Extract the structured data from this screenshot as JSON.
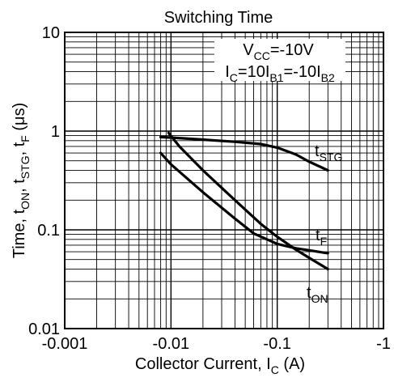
{
  "chart_data": {
    "type": "line",
    "title": "Switching Time",
    "xlabel": {
      "main": "Collector Current, I",
      "sub": "C",
      "tail": " (A)"
    },
    "ylabel": {
      "parts": [
        {
          "t": "Time, t",
          "sub": false
        },
        {
          "t": "ON",
          "sub": true
        },
        {
          "t": ", t",
          "sub": false
        },
        {
          "t": "STG",
          "sub": true
        },
        {
          "t": ", t",
          "sub": false
        },
        {
          "t": "F",
          "sub": true
        },
        {
          "t": " (μs)",
          "sub": false
        }
      ]
    },
    "x_scale": "log",
    "y_scale": "log",
    "xlim": [
      -0.001,
      -1
    ],
    "ylim": [
      0.01,
      10
    ],
    "x_ticks": [
      {
        "value": -0.001,
        "label": "-0.001"
      },
      {
        "value": -0.01,
        "label": "-0.01"
      },
      {
        "value": -0.1,
        "label": "-0.1"
      },
      {
        "value": -1,
        "label": "-1"
      }
    ],
    "y_ticks": [
      {
        "value": 0.01,
        "label": "0.01"
      },
      {
        "value": 0.1,
        "label": "0.1"
      },
      {
        "value": 1,
        "label": "1"
      },
      {
        "value": 10,
        "label": "10"
      }
    ],
    "grid": true,
    "conditions": [
      [
        {
          "t": "V",
          "sub": false
        },
        {
          "t": "CC",
          "sub": true
        },
        {
          "t": "=-10V",
          "sub": false
        }
      ],
      [
        {
          "t": "I",
          "sub": false
        },
        {
          "t": "C",
          "sub": true
        },
        {
          "t": "=10I",
          "sub": false
        },
        {
          "t": "B1",
          "sub": true
        },
        {
          "t": "=-10I",
          "sub": false
        },
        {
          "t": "B2",
          "sub": true
        }
      ]
    ],
    "series": [
      {
        "name": "tSTG",
        "label": [
          {
            "t": "t",
            "sub": false
          },
          {
            "t": "STG",
            "sub": true
          }
        ],
        "x": [
          -0.008,
          -0.01,
          -0.02,
          -0.04,
          -0.07,
          -0.1,
          -0.15,
          -0.2,
          -0.3
        ],
        "y": [
          0.87,
          0.86,
          0.82,
          0.78,
          0.74,
          0.68,
          0.58,
          0.49,
          0.4
        ]
      },
      {
        "name": "tF",
        "label": [
          {
            "t": "t",
            "sub": false
          },
          {
            "t": "F",
            "sub": true
          }
        ],
        "x": [
          -0.0095,
          -0.012,
          -0.02,
          -0.04,
          -0.07,
          -0.1,
          -0.15,
          -0.2,
          -0.3
        ],
        "y": [
          0.96,
          0.7,
          0.4,
          0.2,
          0.115,
          0.085,
          0.063,
          0.052,
          0.04
        ]
      },
      {
        "name": "tON",
        "label": [
          {
            "t": "t",
            "sub": false
          },
          {
            "t": "ON",
            "sub": true
          }
        ],
        "x": [
          -0.008,
          -0.01,
          -0.02,
          -0.04,
          -0.06,
          -0.1,
          -0.15,
          -0.2,
          -0.3
        ],
        "y": [
          0.6,
          0.46,
          0.24,
          0.13,
          0.092,
          0.072,
          0.065,
          0.062,
          0.058
        ]
      }
    ]
  }
}
